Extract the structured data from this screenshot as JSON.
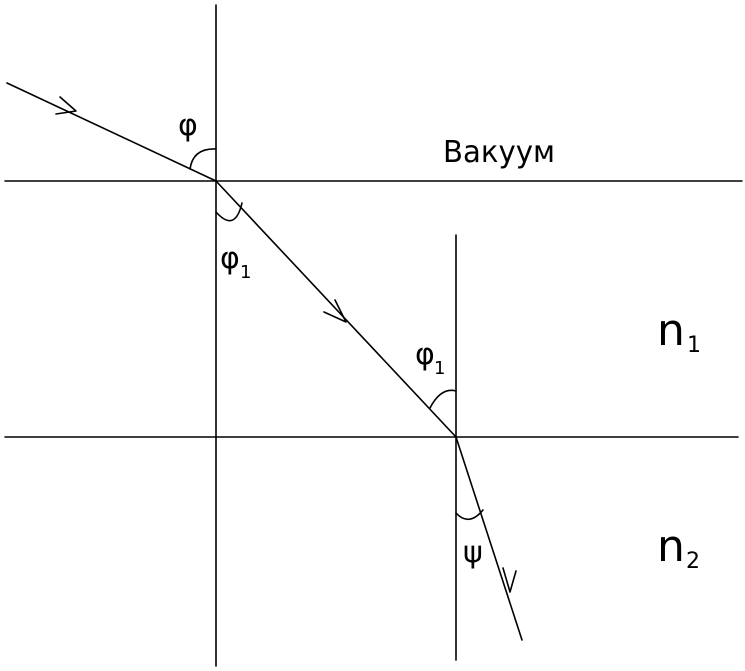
{
  "media_labels": {
    "vacuum": "Вакуум",
    "n1_letter": "n",
    "n1_sub": "1",
    "n2_letter": "n",
    "n2_sub": "2"
  },
  "angle_labels": {
    "phi": "φ",
    "phi1_top_letter": "φ",
    "phi1_top_sub": "1",
    "phi1_bottom_letter": "φ",
    "phi1_bottom_sub": "1",
    "psi": "ψ"
  }
}
